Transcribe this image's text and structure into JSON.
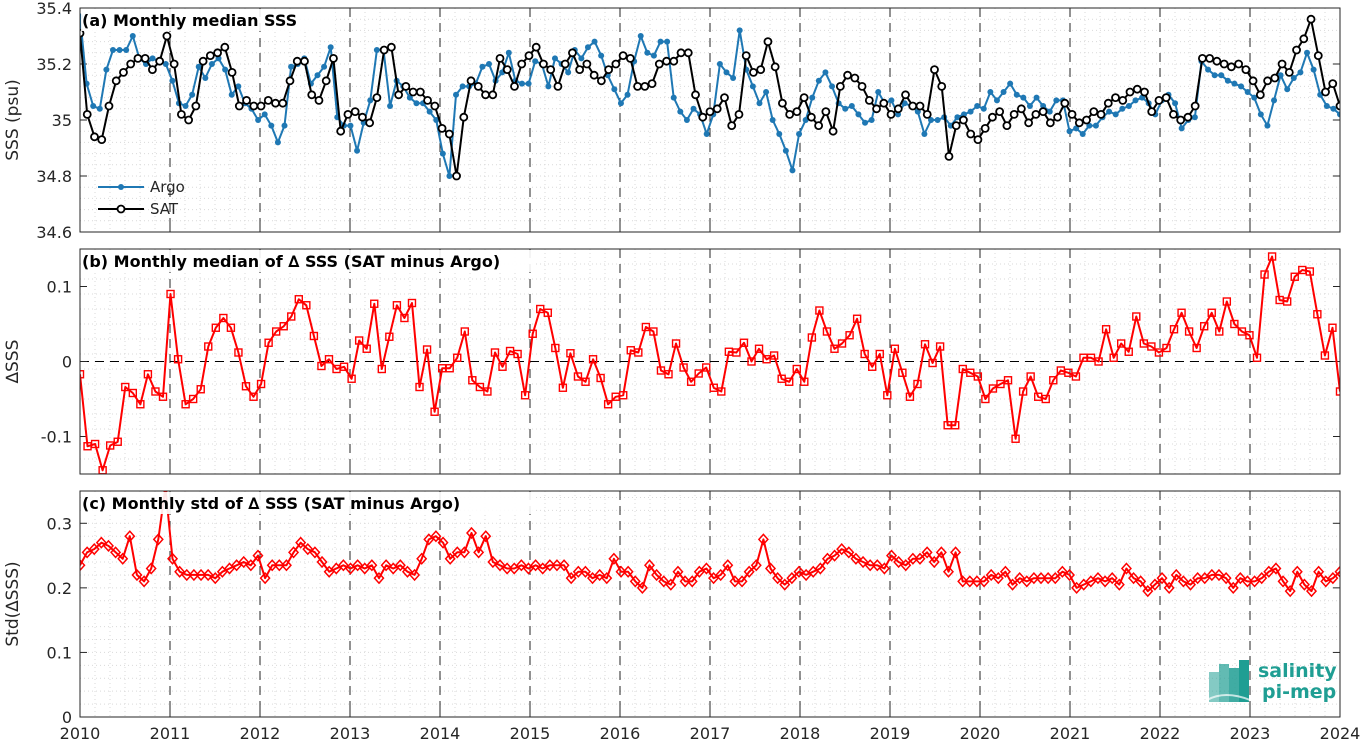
{
  "chart_data": [
    {
      "type": "line",
      "title": "(a) Monthly median SSS",
      "ylabel": "SSS (psu)",
      "xlim": [
        2010,
        2024
      ],
      "ylim": [
        34.6,
        35.4
      ],
      "yticks": [
        "35.4",
        "35.2",
        "35",
        "34.8",
        "34.6"
      ],
      "ytick_values": [
        35.4,
        35.2,
        35.0,
        34.8,
        34.6
      ],
      "xticks": [
        "2010",
        "2011",
        "2012",
        "2013",
        "2014",
        "2015",
        "2016",
        "2017",
        "2018",
        "2019",
        "2020",
        "2021",
        "2022",
        "2023",
        "2024"
      ],
      "grid": true,
      "legend": "bottom-left",
      "series": [
        {
          "name": "Argo",
          "color": "#1f78b4",
          "marker": "dot",
          "values": [
            35.37,
            35.13,
            35.05,
            35.04,
            35.18,
            35.25,
            35.25,
            35.25,
            35.3,
            35.22,
            35.2,
            35.22,
            35.21,
            35.2,
            35.14,
            35.06,
            35.05,
            35.09,
            35.19,
            35.15,
            35.2,
            35.22,
            35.18,
            35.09,
            35.12,
            35.06,
            35.04,
            35.0,
            35.02,
            34.98,
            34.92,
            34.98,
            35.19,
            35.2,
            35.22,
            35.13,
            35.16,
            35.19,
            35.26,
            35.01,
            34.98,
            34.98,
            34.89,
            34.99,
            35.07,
            35.25,
            35.25,
            35.05,
            35.14,
            35.12,
            35.08,
            35.06,
            35.06,
            35.03,
            35.0,
            34.88,
            34.8,
            35.09,
            35.12,
            35.12,
            35.13,
            35.19,
            35.2,
            35.14,
            35.17,
            35.24,
            35.14,
            35.13,
            35.13,
            35.21,
            35.2,
            35.12,
            35.22,
            35.2,
            35.17,
            35.25,
            35.22,
            35.26,
            35.28,
            35.23,
            35.16,
            35.11,
            35.06,
            35.09,
            35.21,
            35.3,
            35.24,
            35.23,
            35.28,
            35.28,
            35.08,
            35.03,
            35.0,
            35.04,
            35.02,
            34.95,
            35.02,
            35.2,
            35.17,
            35.15,
            35.32,
            35.18,
            35.12,
            35.06,
            35.1,
            35.0,
            34.95,
            34.89,
            34.82,
            34.95,
            35.0,
            35.08,
            35.14,
            35.17,
            35.12,
            35.06,
            35.04,
            35.05,
            35.02,
            34.99,
            35.0,
            35.1,
            35.06,
            35.07,
            35.02,
            35.06,
            35.05,
            35.03,
            34.95,
            35.0,
            35.0,
            35.01,
            34.98,
            35.01,
            35.02,
            35.03,
            35.05,
            35.04,
            35.1,
            35.07,
            35.1,
            35.13,
            35.09,
            35.08,
            35.05,
            35.08,
            35.05,
            35.03,
            35.07,
            35.07,
            34.96,
            34.97,
            34.95,
            34.98,
            34.98,
            35.01,
            35.03,
            35.02,
            35.04,
            35.05,
            35.07,
            35.08,
            35.06,
            35.02,
            35.07,
            35.09,
            35.06,
            34.97,
            35.0,
            35.01,
            35.21,
            35.18,
            35.16,
            35.16,
            35.14,
            35.13,
            35.12,
            35.1,
            35.08,
            35.02,
            34.98,
            35.07,
            35.16,
            35.11,
            35.15,
            35.17,
            35.24,
            35.18,
            35.09,
            35.05,
            35.04,
            35.02
          ]
        },
        {
          "name": "SAT",
          "color": "#000000",
          "marker": "circle",
          "values": [
            35.31,
            35.02,
            34.94,
            34.93,
            35.05,
            35.14,
            35.17,
            35.2,
            35.22,
            35.22,
            35.18,
            35.21,
            35.3,
            35.2,
            35.02,
            35.0,
            35.05,
            35.21,
            35.23,
            35.24,
            35.26,
            35.17,
            35.05,
            35.07,
            35.05,
            35.05,
            35.07,
            35.06,
            35.06,
            35.14,
            35.21,
            35.21,
            35.09,
            35.07,
            35.14,
            35.22,
            34.96,
            35.02,
            35.03,
            35.01,
            34.99,
            35.08,
            35.25,
            35.26,
            35.09,
            35.12,
            35.1,
            35.1,
            35.07,
            35.05,
            34.97,
            34.95,
            34.8,
            35.01,
            35.14,
            35.12,
            35.09,
            35.09,
            35.22,
            35.18,
            35.12,
            35.2,
            35.23,
            35.26,
            35.2,
            35.18,
            35.12,
            35.2,
            35.24,
            35.18,
            35.2,
            35.16,
            35.14,
            35.18,
            35.2,
            35.23,
            35.22,
            35.12,
            35.12,
            35.13,
            35.2,
            35.21,
            35.21,
            35.24,
            35.24,
            35.09,
            35.01,
            35.03,
            35.04,
            35.08,
            34.98,
            35.02,
            35.23,
            35.17,
            35.18,
            35.28,
            35.19,
            35.06,
            35.02,
            35.03,
            35.08,
            35.01,
            34.98,
            35.03,
            34.96,
            35.12,
            35.16,
            35.15,
            35.12,
            35.07,
            35.04,
            35.06,
            35.02,
            35.04,
            35.09,
            35.05,
            35.05,
            35.02,
            35.18,
            35.12,
            34.87,
            34.98,
            35.0,
            34.95,
            34.93,
            34.97,
            35.01,
            35.03,
            34.98,
            35.02,
            35.04,
            34.99,
            35.02,
            35.03,
            34.99,
            35.01,
            35.06,
            35.02,
            34.99,
            35.0,
            35.03,
            35.02,
            35.06,
            35.08,
            35.07,
            35.1,
            35.11,
            35.1,
            35.03,
            35.07,
            35.08,
            35.02,
            35.0,
            35.01,
            35.05,
            35.22,
            35.22,
            35.21,
            35.2,
            35.19,
            35.2,
            35.18,
            35.14,
            35.09,
            35.14,
            35.15,
            35.2,
            35.17,
            35.25,
            35.29,
            35.36,
            35.23,
            35.1,
            35.13,
            35.05
          ]
        }
      ]
    },
    {
      "type": "line",
      "title": "(b) Monthly median of ∆ SSS (SAT minus Argo)",
      "ylabel": "∆SSS",
      "xlim": [
        2010,
        2024
      ],
      "ylim": [
        -0.15,
        0.15
      ],
      "yticks": [
        "0.1",
        "0",
        "-0.1"
      ],
      "ytick_values": [
        0.1,
        0.0,
        -0.1
      ],
      "reference_line": 0,
      "grid": true,
      "series": [
        {
          "name": "",
          "color": "#ff0000",
          "marker": "square",
          "values": [
            -0.017,
            -0.113,
            -0.11,
            -0.145,
            -0.112,
            -0.107,
            -0.034,
            -0.042,
            -0.057,
            -0.017,
            -0.04,
            -0.047,
            0.09,
            0.003,
            -0.057,
            -0.05,
            -0.037,
            0.02,
            0.045,
            0.058,
            0.045,
            0.012,
            -0.033,
            -0.047,
            -0.03,
            0.025,
            0.04,
            0.047,
            0.06,
            0.083,
            0.075,
            0.034,
            -0.006,
            0.003,
            -0.01,
            -0.007,
            -0.023,
            0.028,
            0.017,
            0.077,
            -0.01,
            0.033,
            0.075,
            0.058,
            0.078,
            -0.034,
            0.016,
            -0.067,
            -0.009,
            -0.009,
            0.005,
            0.04,
            -0.025,
            -0.034,
            -0.04,
            0.012,
            -0.007,
            0.014,
            0.01,
            -0.045,
            0.037,
            0.07,
            0.065,
            0.018,
            -0.035,
            0.011,
            -0.02,
            -0.027,
            0.003,
            -0.022,
            -0.057,
            -0.047,
            -0.045,
            0.015,
            0.012,
            0.046,
            0.04,
            -0.012,
            -0.017,
            0.024,
            -0.008,
            -0.027,
            -0.016,
            -0.008,
            -0.035,
            -0.04,
            0.013,
            0.012,
            0.025,
            0.0,
            0.017,
            0.003,
            0.008,
            -0.023,
            -0.027,
            -0.01,
            -0.027,
            0.032,
            0.068,
            0.04,
            0.017,
            0.024,
            0.035,
            0.057,
            0.01,
            -0.007,
            0.01,
            -0.045,
            0.017,
            -0.015,
            -0.047,
            -0.03,
            0.023,
            -0.002,
            0.02,
            -0.085,
            -0.085,
            -0.01,
            -0.015,
            -0.02,
            -0.05,
            -0.036,
            -0.03,
            -0.025,
            -0.103,
            -0.04,
            -0.02,
            -0.047,
            -0.05,
            -0.025,
            -0.012,
            -0.015,
            -0.02,
            0.005,
            0.005,
            0.0,
            0.043,
            0.005,
            0.024,
            0.013,
            0.06,
            0.024,
            0.02,
            0.012,
            0.018,
            0.043,
            0.065,
            0.04,
            0.018,
            0.047,
            0.065,
            0.04,
            0.08,
            0.05,
            0.04,
            0.035,
            0.005,
            0.116,
            0.14,
            0.082,
            0.08,
            0.113,
            0.122,
            0.12,
            0.063,
            0.008,
            0.045,
            -0.04
          ]
        }
      ]
    },
    {
      "type": "line",
      "title": "(c) Monthly std of ∆ SSS (SAT minus Argo)",
      "ylabel": "Std(∆SSS)",
      "xlim": [
        2010,
        2024
      ],
      "ylim": [
        0,
        0.35
      ],
      "yticks": [
        "0.3",
        "0.2",
        "0.1",
        "0"
      ],
      "ytick_values": [
        0.3,
        0.2,
        0.1,
        0.0
      ],
      "xticks": [
        "2010",
        "2011",
        "2012",
        "2013",
        "2014",
        "2015",
        "2016",
        "2017",
        "2018",
        "2019",
        "2020",
        "2021",
        "2022",
        "2023",
        "2024"
      ],
      "grid": true,
      "series": [
        {
          "name": "",
          "color": "#ff0000",
          "marker": "diamond",
          "values": [
            0.235,
            0.255,
            0.26,
            0.27,
            0.265,
            0.255,
            0.245,
            0.28,
            0.22,
            0.21,
            0.23,
            0.275,
            0.355,
            0.245,
            0.225,
            0.22,
            0.22,
            0.22,
            0.22,
            0.215,
            0.225,
            0.23,
            0.235,
            0.24,
            0.235,
            0.25,
            0.215,
            0.235,
            0.235,
            0.235,
            0.255,
            0.27,
            0.26,
            0.255,
            0.24,
            0.225,
            0.23,
            0.235,
            0.23,
            0.235,
            0.23,
            0.235,
            0.215,
            0.235,
            0.23,
            0.235,
            0.225,
            0.22,
            0.245,
            0.275,
            0.28,
            0.27,
            0.245,
            0.255,
            0.255,
            0.285,
            0.255,
            0.28,
            0.24,
            0.235,
            0.23,
            0.23,
            0.235,
            0.23,
            0.235,
            0.23,
            0.235,
            0.235,
            0.235,
            0.215,
            0.225,
            0.225,
            0.215,
            0.22,
            0.215,
            0.245,
            0.225,
            0.225,
            0.21,
            0.2,
            0.235,
            0.22,
            0.21,
            0.205,
            0.225,
            0.21,
            0.21,
            0.225,
            0.23,
            0.215,
            0.22,
            0.235,
            0.21,
            0.21,
            0.225,
            0.235,
            0.275,
            0.23,
            0.215,
            0.205,
            0.215,
            0.225,
            0.22,
            0.225,
            0.23,
            0.245,
            0.25,
            0.26,
            0.255,
            0.245,
            0.24,
            0.235,
            0.235,
            0.23,
            0.25,
            0.24,
            0.235,
            0.245,
            0.245,
            0.255,
            0.24,
            0.255,
            0.225,
            0.255,
            0.21,
            0.21,
            0.21,
            0.21,
            0.22,
            0.215,
            0.225,
            0.205,
            0.215,
            0.21,
            0.215,
            0.215,
            0.215,
            0.215,
            0.225,
            0.22,
            0.2,
            0.205,
            0.21,
            0.215,
            0.21,
            0.215,
            0.205,
            0.23,
            0.215,
            0.21,
            0.195,
            0.205,
            0.215,
            0.2,
            0.22,
            0.21,
            0.205,
            0.215,
            0.215,
            0.22,
            0.22,
            0.215,
            0.2,
            0.215,
            0.21,
            0.21,
            0.215,
            0.225,
            0.23,
            0.21,
            0.195,
            0.225,
            0.205,
            0.195,
            0.225,
            0.21,
            0.215,
            0.225
          ]
        }
      ]
    }
  ],
  "logo": {
    "line1": "salinity",
    "line2": "pi-mep",
    "color": "#1f9e93"
  }
}
